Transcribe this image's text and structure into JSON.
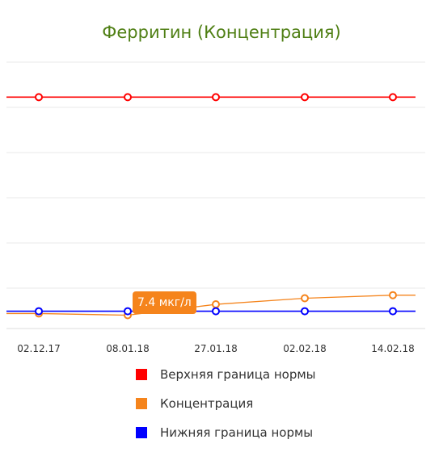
{
  "chart_data": {
    "type": "line",
    "title": "Ферритин (Концентрация)",
    "categories": [
      "02.12.17",
      "08.01.18",
      "27.01.18",
      "02.02.18",
      "14.02.18"
    ],
    "series": [
      {
        "name": "Верхняя граница нормы",
        "color": "#ff0000",
        "values": [
          150,
          150,
          150,
          150,
          150
        ]
      },
      {
        "name": "Концентрация",
        "color": "#f5841c",
        "values": [
          8.5,
          7.4,
          14.5,
          18.5,
          20.5
        ]
      },
      {
        "name": "Нижняя граница нормы",
        "color": "#0000ff",
        "values": [
          10,
          10,
          10,
          10,
          10
        ]
      }
    ],
    "ylim": [
      -5,
      175
    ],
    "grid": true,
    "legend_position": "bottom"
  },
  "tooltip": {
    "text": "7.4 мкг/л"
  }
}
